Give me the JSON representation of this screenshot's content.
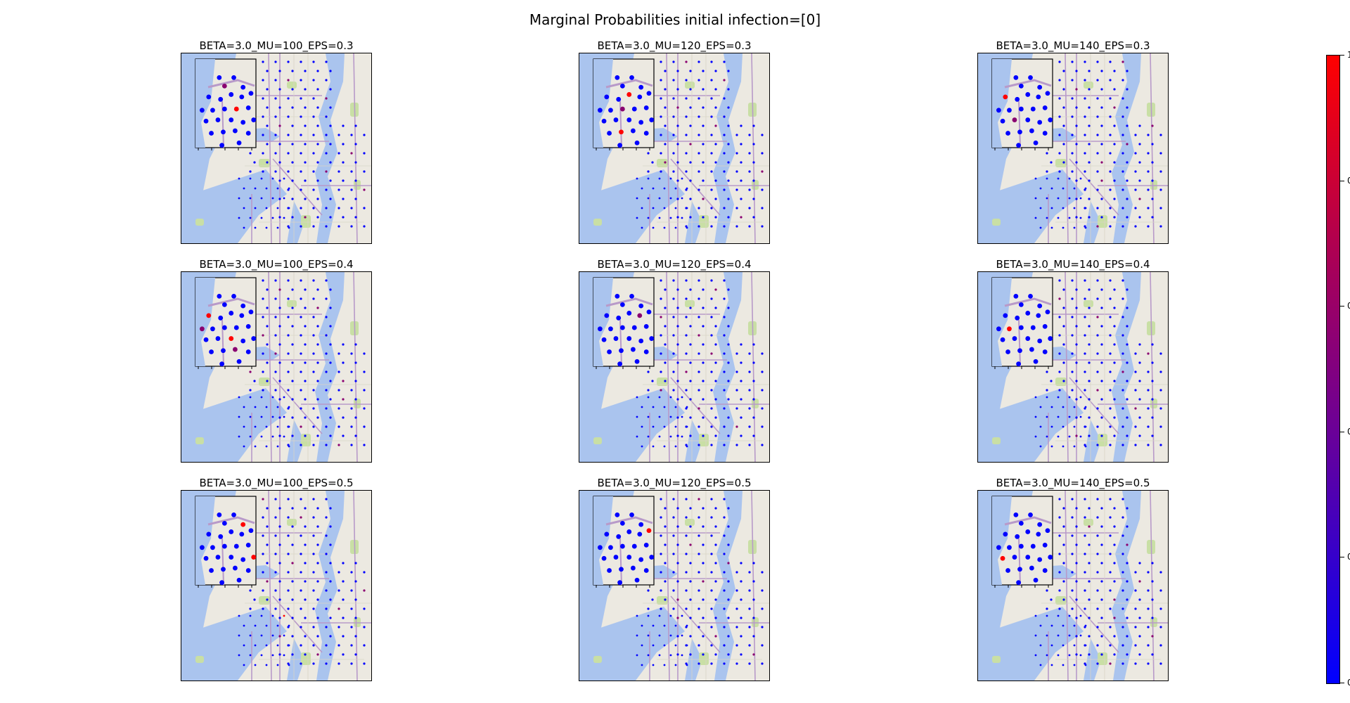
{
  "figure": {
    "title": "Marginal Probabilities initial infection=[0]"
  },
  "chart_data": {
    "type": "scatter",
    "layout": "3x3 grid of map panels",
    "colorbar": {
      "colormap": "blue-to-red",
      "low_color": "#0000ff",
      "high_color": "#ff0000",
      "tick_labels": [
        "0",
        "0",
        "0",
        "0",
        "0",
        "1"
      ]
    },
    "panels": [
      {
        "title": "BETA=3.0_MU=100_EPS=0.3",
        "beta": 3.0,
        "mu": 100,
        "eps": 0.3
      },
      {
        "title": "BETA=3.0_MU=120_EPS=0.3",
        "beta": 3.0,
        "mu": 120,
        "eps": 0.3
      },
      {
        "title": "BETA=3.0_MU=140_EPS=0.3",
        "beta": 3.0,
        "mu": 140,
        "eps": 0.3
      },
      {
        "title": "BETA=3.0_MU=100_EPS=0.4",
        "beta": 3.0,
        "mu": 100,
        "eps": 0.4
      },
      {
        "title": "BETA=3.0_MU=120_EPS=0.4",
        "beta": 3.0,
        "mu": 120,
        "eps": 0.4
      },
      {
        "title": "BETA=3.0_MU=140_EPS=0.4",
        "beta": 3.0,
        "mu": 140,
        "eps": 0.4
      },
      {
        "title": "BETA=3.0_MU=100_EPS=0.5",
        "beta": 3.0,
        "mu": 100,
        "eps": 0.5
      },
      {
        "title": "BETA=3.0_MU=120_EPS=0.5",
        "beta": 3.0,
        "mu": 120,
        "eps": 0.5
      },
      {
        "title": "BETA=3.0_MU=140_EPS=0.5",
        "beta": 3.0,
        "mu": 140,
        "eps": 0.5
      }
    ]
  }
}
